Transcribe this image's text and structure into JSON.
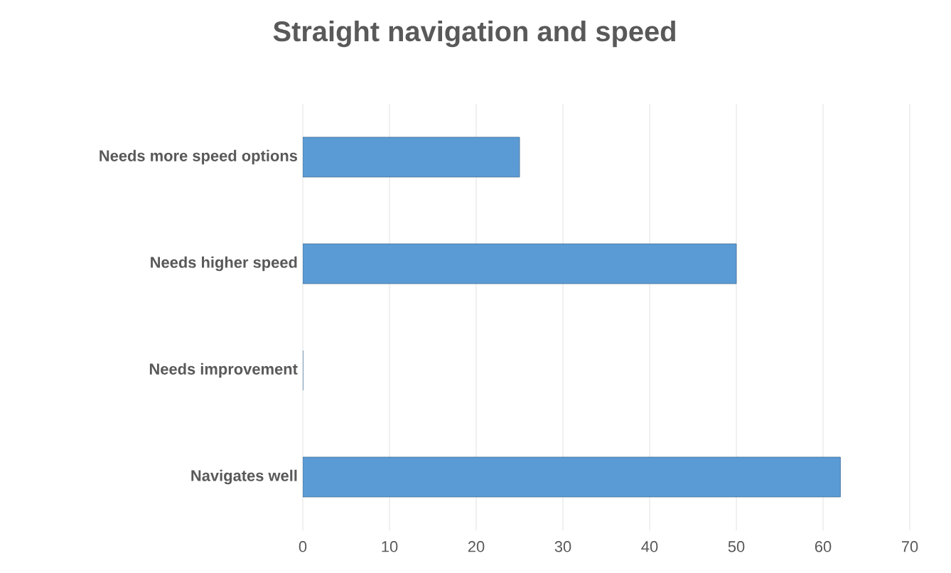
{
  "chart_data": {
    "type": "bar",
    "orientation": "horizontal",
    "title": "Straight navigation and speed",
    "categories": [
      "Needs more speed options",
      "Needs higher speed",
      "Needs improvement",
      "Navigates well"
    ],
    "values": [
      25,
      50,
      0,
      62
    ],
    "color": "#5b9bd5",
    "xlim": [
      0,
      70
    ],
    "xticks": [
      0,
      10,
      20,
      30,
      40,
      50,
      60,
      70
    ],
    "grid": "x"
  }
}
